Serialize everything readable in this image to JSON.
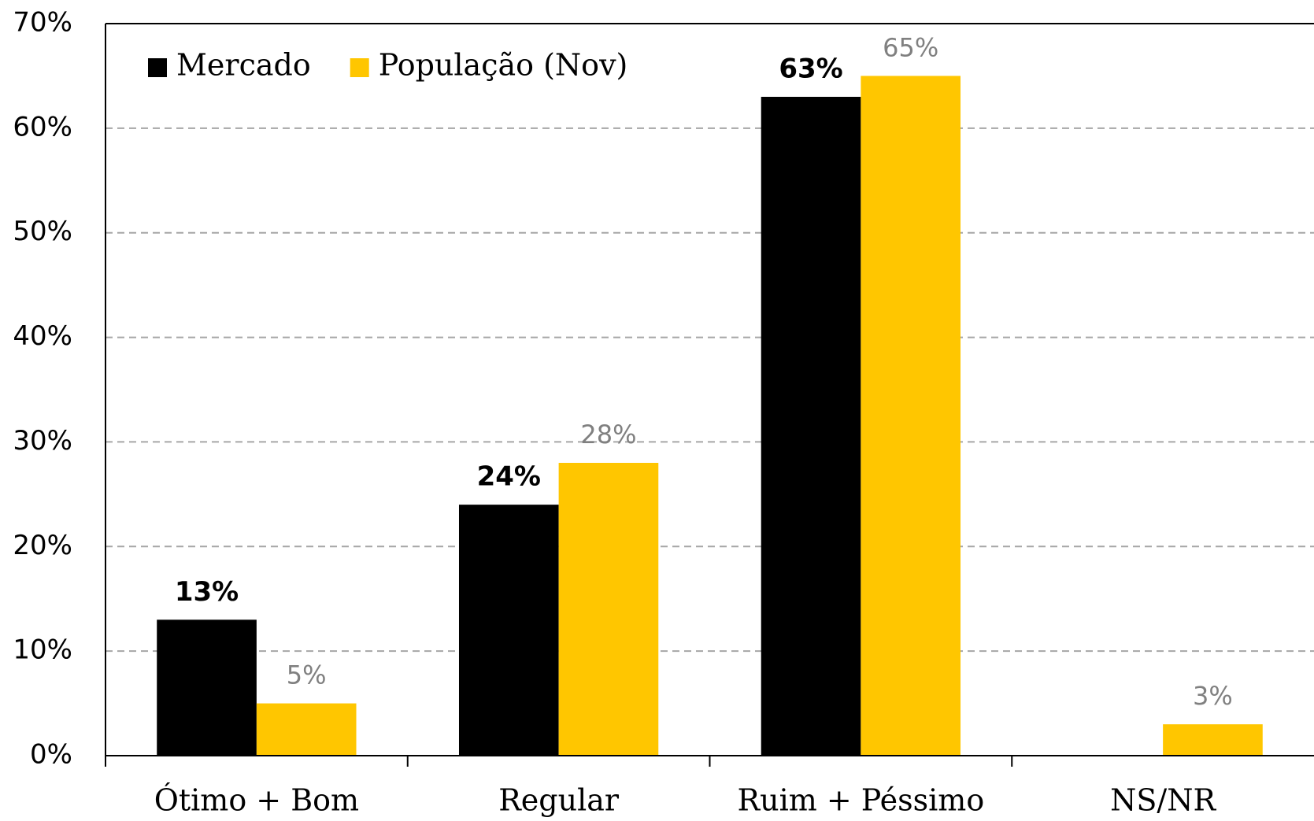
{
  "chart_data": {
    "type": "bar",
    "categories": [
      "Ótimo + Bom",
      "Regular",
      "Ruim + Péssimo",
      "NS/NR"
    ],
    "series": [
      {
        "name": "Mercado",
        "color": "#000000",
        "values": [
          13,
          24,
          63,
          null
        ],
        "value_labels": [
          "13%",
          "24%",
          "63%",
          null
        ]
      },
      {
        "name": "População (Nov)",
        "color": "#ffc600",
        "values": [
          5,
          28,
          65,
          3
        ],
        "value_labels": [
          "5%",
          "28%",
          "65%",
          "3%"
        ]
      }
    ],
    "ylim": [
      0,
      70
    ],
    "yticks": [
      {
        "value": 0,
        "label": "0%"
      },
      {
        "value": 10,
        "label": "10%"
      },
      {
        "value": 20,
        "label": "20%"
      },
      {
        "value": 30,
        "label": "30%"
      },
      {
        "value": 40,
        "label": "40%"
      },
      {
        "value": 50,
        "label": "50%"
      },
      {
        "value": 60,
        "label": "60%"
      },
      {
        "value": 70,
        "label": "70%"
      }
    ],
    "grid": true,
    "legend": "upper left"
  }
}
